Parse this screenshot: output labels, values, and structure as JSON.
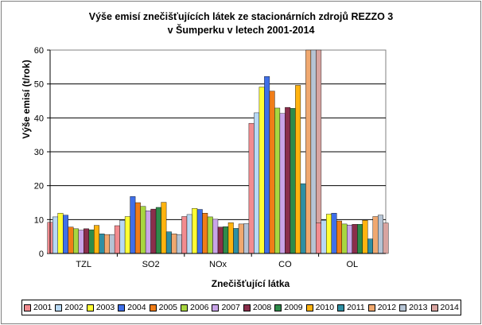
{
  "chart_data": {
    "type": "bar",
    "title_line1": "Výše emisí znečišťujících látek ze stacionárních  zdrojů REZZO 3",
    "title_line2": "v Šumperku v letech 2001-2014",
    "ylabel": "Výše emisí (t/rok)",
    "xlabel": "Znečišťující látka",
    "ylim": [
      0,
      60
    ],
    "yticks": [
      "0",
      "10",
      "20",
      "30",
      "40",
      "50",
      "60"
    ],
    "grid": true,
    "legend_position": "bottom",
    "categories": [
      "TZL",
      "SO2",
      "NOx",
      "CO",
      "OL"
    ],
    "series": [
      {
        "name": "2001",
        "color": "#f28b8f",
        "values": [
          9.2,
          8.2,
          10.9,
          38.4,
          9.0
        ]
      },
      {
        "name": "2002",
        "color": "#b8d9f5",
        "values": [
          10.8,
          9.8,
          11.5,
          41.5,
          9.8
        ]
      },
      {
        "name": "2003",
        "color": "#ffff33",
        "values": [
          11.9,
          10.9,
          13.3,
          49.1,
          11.6
        ]
      },
      {
        "name": "2004",
        "color": "#3f6fe8",
        "values": [
          11.3,
          16.8,
          13.0,
          52.2,
          11.9
        ]
      },
      {
        "name": "2005",
        "color": "#f07d18",
        "values": [
          7.8,
          15.0,
          11.9,
          47.9,
          9.6
        ]
      },
      {
        "name": "2006",
        "color": "#a8d640",
        "values": [
          7.3,
          13.9,
          10.8,
          42.9,
          8.7
        ]
      },
      {
        "name": "2007",
        "color": "#c9a4e8",
        "values": [
          6.9,
          12.6,
          10.1,
          41.3,
          8.4
        ]
      },
      {
        "name": "2008",
        "color": "#8a2e4b",
        "values": [
          7.3,
          13.1,
          7.8,
          43.1,
          8.6
        ]
      },
      {
        "name": "2009",
        "color": "#2e8b4a",
        "values": [
          7.0,
          13.6,
          7.9,
          42.8,
          8.6
        ]
      },
      {
        "name": "2010",
        "color": "#ffb30f",
        "values": [
          8.3,
          15.1,
          9.1,
          49.6,
          9.8
        ]
      },
      {
        "name": "2011",
        "color": "#2e8fa3",
        "values": [
          5.8,
          6.4,
          7.4,
          20.6,
          4.3
        ]
      },
      {
        "name": "2012",
        "color": "#f0a86f",
        "values": [
          5.6,
          5.8,
          8.7,
          60,
          10.9
        ]
      },
      {
        "name": "2013",
        "color": "#b6c4d4",
        "values": [
          5.6,
          5.6,
          8.8,
          60,
          11.3
        ]
      },
      {
        "name": "2014",
        "color": "#d8a4a0",
        "values": [
          4.4,
          4.1,
          7.4,
          60,
          9.0
        ]
      }
    ]
  }
}
